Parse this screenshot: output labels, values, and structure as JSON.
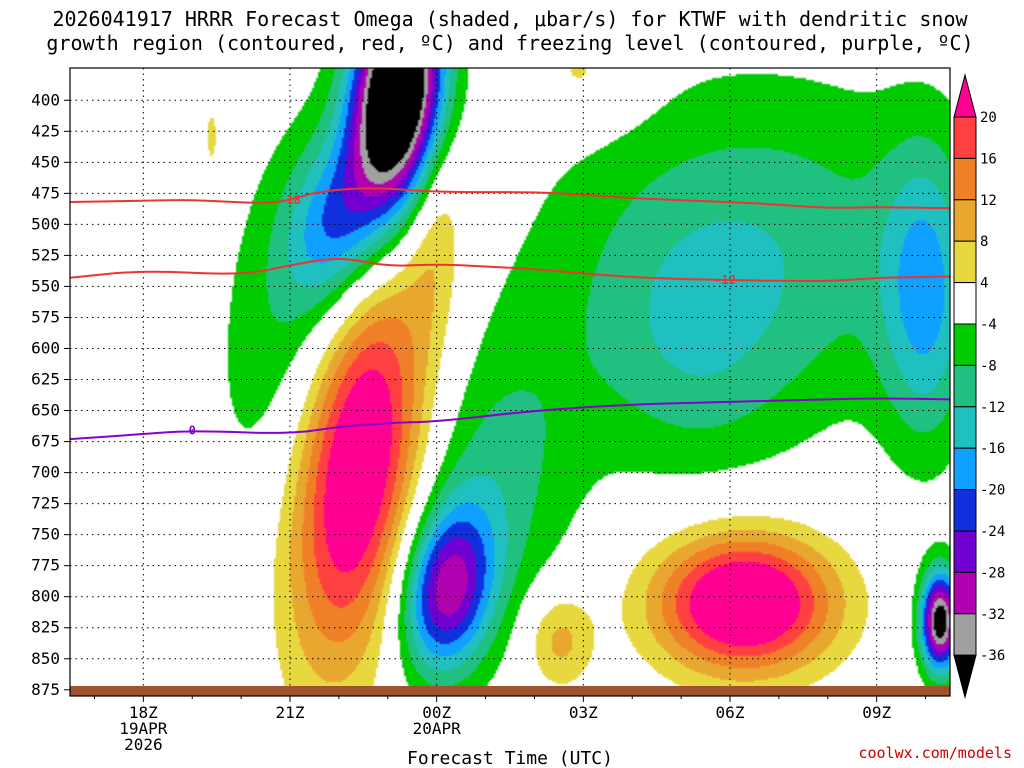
{
  "chart_data": {
    "type": "heatmap",
    "title_line1": "2026041917 HRRR Forecast Omega (shaded, μbar/s) for KTWF with dendritic snow",
    "title_line2": "growth region (contoured, red, ºC) and freezing level (contoured, purple, ºC)",
    "xlabel": "Forecast Time (UTC)",
    "credit": "coolwx.com/models",
    "x_range_hours_after_18Z": [
      -1.5,
      16.5
    ],
    "x_ticks": [
      {
        "hour": 0,
        "label": "18Z",
        "line2": "19APR",
        "line3": "2026"
      },
      {
        "hour": 3,
        "label": "21Z",
        "line2": "",
        "line3": ""
      },
      {
        "hour": 6,
        "label": "00Z",
        "line2": "20APR",
        "line3": ""
      },
      {
        "hour": 9,
        "label": "03Z",
        "line2": "",
        "line3": ""
      },
      {
        "hour": 12,
        "label": "06Z",
        "line2": "",
        "line3": ""
      },
      {
        "hour": 15,
        "label": "09Z",
        "line2": "",
        "line3": ""
      }
    ],
    "y_range_hPa": [
      880,
      374
    ],
    "y_ticks": [
      "400",
      "425",
      "450",
      "475",
      "500",
      "525",
      "550",
      "575",
      "600",
      "625",
      "650",
      "675",
      "700",
      "725",
      "750",
      "775",
      "800",
      "825",
      "850",
      "875"
    ],
    "colorbar_ticks": [
      "20",
      "16",
      "12",
      "8",
      "4",
      "-4",
      "-8",
      "-12",
      "-16",
      "-20",
      "-24",
      "-28",
      "-32",
      "-36"
    ],
    "color_levels": [
      {
        "min": 20,
        "color": "#ff0090"
      },
      {
        "min": 16,
        "color": "#ff4040"
      },
      {
        "min": 12,
        "color": "#f08028"
      },
      {
        "min": 8,
        "color": "#e8a830"
      },
      {
        "min": 4,
        "color": "#e8d840"
      },
      {
        "min": -4,
        "color": "#ffffff"
      },
      {
        "min": -8,
        "color": "#00cc00"
      },
      {
        "min": -12,
        "color": "#20c080"
      },
      {
        "min": -16,
        "color": "#20c0c0"
      },
      {
        "min": -20,
        "color": "#10a0ff"
      },
      {
        "min": -24,
        "color": "#1030e0"
      },
      {
        "min": -28,
        "color": "#7000d0"
      },
      {
        "min": -32,
        "color": "#b000b0"
      },
      {
        "min": -36,
        "color": "#a0a0a0"
      },
      {
        "min": -999,
        "color": "#000000"
      }
    ],
    "omega_features": [
      {
        "name": "updraft-core-2330Z",
        "hour": 5.2,
        "hPa": 395,
        "dx": 0.9,
        "dy": 90,
        "amp": -52,
        "rot": 0.2
      },
      {
        "name": "updraft-band-2200Z",
        "hour": 4.0,
        "hPa": 500,
        "dx": 1.0,
        "dy": 70,
        "amp": -16,
        "rot": 0.3
      },
      {
        "name": "green-band-upper",
        "hour": 3.2,
        "hPa": 575,
        "dx": 1.6,
        "dy": 160,
        "amp": -9,
        "rot": 0.3
      },
      {
        "name": "sinking-2230Z",
        "hour": 4.4,
        "hPa": 690,
        "dx": 1.3,
        "dy": 160,
        "amp": 30,
        "rot": 0.25
      },
      {
        "name": "sinking-00Z-upper",
        "hour": 6.0,
        "hPa": 500,
        "dx": 0.6,
        "dy": 90,
        "amp": 7,
        "rot": 0.1
      },
      {
        "name": "updraft-00Z-lower",
        "hour": 6.2,
        "hPa": 795,
        "dx": 0.9,
        "dy": 65,
        "amp": -26,
        "rot": 0.25
      },
      {
        "name": "green-wedge-01Z",
        "hour": 7.0,
        "hPa": 720,
        "dx": 1.8,
        "dy": 130,
        "amp": -10,
        "rot": 0.4
      },
      {
        "name": "broad-ascent-east",
        "hour": 12.5,
        "hPa": 520,
        "dx": 4.2,
        "dy": 140,
        "amp": -11,
        "rot": 0.05
      },
      {
        "name": "ascent-04-06Z",
        "hour": 11.2,
        "hPa": 610,
        "dx": 2.0,
        "dy": 100,
        "amp": -6,
        "rot": 0.0
      },
      {
        "name": "ascent-09Z-upper",
        "hour": 16.0,
        "hPa": 560,
        "dx": 0.9,
        "dy": 120,
        "amp": -14,
        "rot": 0.0
      },
      {
        "name": "ascent-1030Z-low",
        "hour": 16.3,
        "hPa": 820,
        "dx": 0.4,
        "dy": 40,
        "amp": -40,
        "rot": 0.0
      },
      {
        "name": "sinking-06Z-lower",
        "hour": 12.3,
        "hPa": 805,
        "dx": 1.8,
        "dy": 55,
        "amp": 30,
        "rot": 0.0
      },
      {
        "name": "sinking-02Z-lower",
        "hour": 8.5,
        "hPa": 835,
        "dx": 0.7,
        "dy": 40,
        "amp": 10,
        "rot": 0.0
      },
      {
        "name": "sinking-top-02Z",
        "hour": 9.0,
        "hPa": 380,
        "dx": 1.2,
        "dy": 40,
        "amp": 6,
        "rot": 0.0
      },
      {
        "name": "sinking-1930Z-top",
        "hour": 1.4,
        "hPa": 430,
        "dx": 0.15,
        "dy": 30,
        "amp": 6,
        "rot": 0.0
      }
    ],
    "contours": [
      {
        "label": "-18",
        "color": "#ee3333",
        "label_hour": 3.0,
        "points": [
          [
            -1.5,
            482
          ],
          [
            0,
            481
          ],
          [
            1,
            480
          ],
          [
            2.7,
            484
          ],
          [
            3.5,
            474
          ],
          [
            4.3,
            471
          ],
          [
            5,
            471
          ],
          [
            6,
            474
          ],
          [
            8,
            474
          ],
          [
            9,
            476
          ],
          [
            10,
            479
          ],
          [
            12,
            482
          ],
          [
            13,
            484
          ],
          [
            14,
            487
          ],
          [
            15,
            486
          ],
          [
            16.5,
            487
          ]
        ]
      },
      {
        "label": "-12",
        "color": "#ee3333",
        "label_hour": 11.9,
        "points": [
          [
            -1.5,
            543
          ],
          [
            0,
            537
          ],
          [
            2,
            541
          ],
          [
            3,
            533
          ],
          [
            4,
            526
          ],
          [
            5,
            534
          ],
          [
            6,
            532
          ],
          [
            7,
            534
          ],
          [
            8,
            536
          ],
          [
            10,
            543
          ],
          [
            12,
            545
          ],
          [
            14,
            546
          ],
          [
            15,
            543
          ],
          [
            16.5,
            542
          ]
        ]
      },
      {
        "label": "0",
        "color": "#8800cc",
        "label_hour": 1.0,
        "points": [
          [
            -1.5,
            673
          ],
          [
            0,
            669
          ],
          [
            1,
            666
          ],
          [
            3,
            669
          ],
          [
            4,
            663
          ],
          [
            5,
            660
          ],
          [
            6,
            659
          ],
          [
            8,
            650
          ],
          [
            10,
            645
          ],
          [
            12,
            643
          ],
          [
            14,
            641
          ],
          [
            15,
            640
          ],
          [
            16.5,
            641
          ]
        ]
      }
    ]
  }
}
